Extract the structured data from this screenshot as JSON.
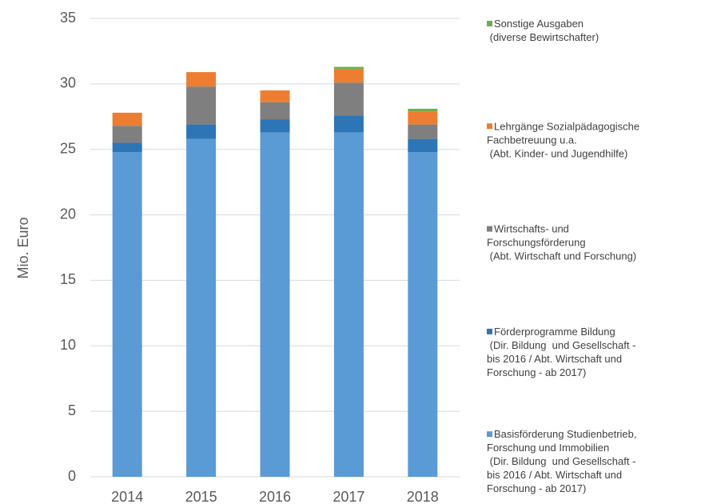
{
  "chart_data": {
    "type": "stacked_bar",
    "y_label": "Mio. Euro",
    "categories": [
      "2014",
      "2015",
      "2016",
      "2017",
      "2018"
    ],
    "series": [
      {
        "name": "Basisförderung Studienbetrieb,\nForschung und Immobilien\n (Dir. Bildung  und Gesellschaft -\nbis 2016 / Abt. Wirtschaft und\nForschung - ab 2017)",
        "color": "#5b9bd5",
        "values": [
          24.8,
          25.8,
          26.3,
          26.3,
          24.8
        ]
      },
      {
        "name": "Förderprogramme Bildung\n (Dir. Bildung  und Gesellschaft -\nbis 2016 / Abt. Wirtschaft und\nForschung - ab 2017)",
        "color": "#2e75b6",
        "values": [
          0.7,
          1.1,
          1.0,
          1.3,
          1.0
        ]
      },
      {
        "name": "Wirtschafts- und\nForschungsförderung\n (Abt. Wirtschaft und Forschung)",
        "color": "#7f7f7f",
        "values": [
          1.3,
          2.9,
          1.3,
          2.5,
          1.1
        ]
      },
      {
        "name": "Lehrgänge Sozialpädagogische\nFachbetreuung u.a.\n (Abt. Kinder- und Jugendhilfe)",
        "color": "#ed7d31",
        "values": [
          1.0,
          1.1,
          0.9,
          1.0,
          1.0
        ]
      },
      {
        "name": "Sonstige Ausgaben\n (diverse Bewirtschafter)",
        "color": "#70ad47",
        "values": [
          0,
          0,
          0,
          0.2,
          0.2
        ]
      }
    ],
    "ylim": [
      0,
      35
    ],
    "yticks": [
      0,
      5,
      10,
      15,
      20,
      25,
      30,
      35
    ],
    "grid": true,
    "legend": "right"
  }
}
